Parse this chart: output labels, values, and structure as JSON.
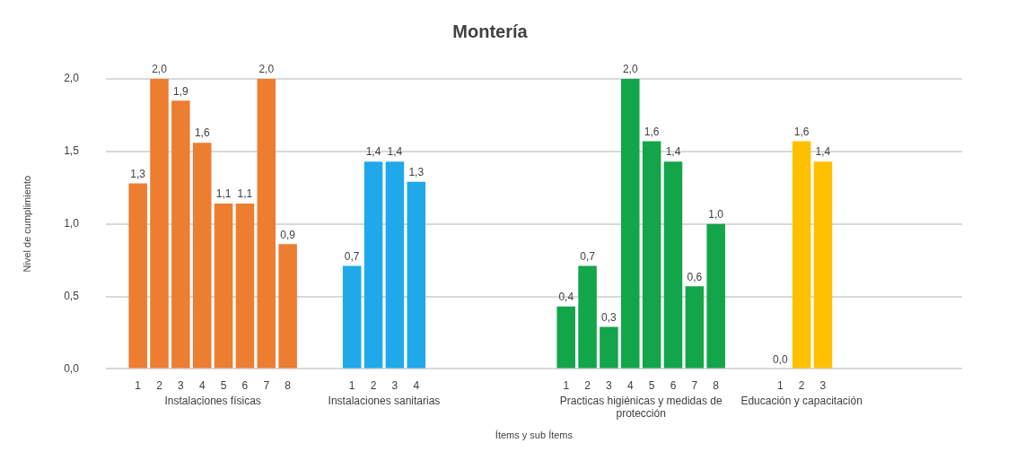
{
  "chart_data": {
    "type": "bar",
    "title": "Montería",
    "ylabel": "Nivel de cumplimiento",
    "xlabel": "Ítems y sub Ítems",
    "annotations": [
      "Instalaciones físicas",
      "Instalaciones sanitarias",
      "Practicas higiénicas y medidas de protección",
      "Educación y capacitación"
    ],
    "categories": [
      null,
      "1",
      "2",
      "3",
      "4",
      "5",
      "6",
      "7",
      "8",
      null,
      null,
      "1",
      "2",
      "3",
      "4",
      null,
      null,
      null,
      null,
      null,
      null,
      "1",
      "2",
      "3",
      "4",
      "5",
      "6",
      "7",
      "8",
      null,
      null,
      "1",
      "2",
      "3",
      null,
      null,
      null,
      null,
      null,
      null
    ],
    "values": [
      null,
      1.28,
      2.0,
      1.85,
      1.56,
      1.14,
      1.14,
      2.0,
      0.86,
      null,
      null,
      0.71,
      1.43,
      1.43,
      1.29,
      null,
      null,
      null,
      null,
      null,
      null,
      0.43,
      0.71,
      0.29,
      2.0,
      1.57,
      1.43,
      0.57,
      1.0,
      null,
      null,
      0,
      1.57,
      1.43,
      null,
      null,
      null,
      null,
      null,
      null
    ],
    "value_labels": [
      null,
      "1,3",
      "2,0",
      "1,9",
      "1,6",
      "1,1",
      "1,1",
      "2,0",
      "0,9",
      null,
      null,
      "0,7",
      "1,4",
      "1,4",
      "1,3",
      null,
      null,
      null,
      null,
      null,
      null,
      "0,4",
      "0,7",
      "0,3",
      "2,0",
      "1,6",
      "1,4",
      "0,6",
      "1,0",
      null,
      null,
      "0,0",
      "1,6",
      "1,4",
      null,
      null,
      null,
      null,
      null,
      null
    ],
    "colors": [
      null,
      "#ed7d31",
      "#ed7d31",
      "#ed7d31",
      "#ed7d31",
      "#ed7d31",
      "#ed7d31",
      "#ed7d31",
      "#ed7d31",
      null,
      null,
      "#1fa9ea",
      "#1fa9ea",
      "#1fa9ea",
      "#1fa9ea",
      null,
      null,
      null,
      null,
      null,
      null,
      "#12a54a",
      "#12a54a",
      "#12a54a",
      "#12a54a",
      "#12a54a",
      "#12a54a",
      "#12a54a",
      "#12a54a",
      null,
      null,
      "#ffc000",
      "#ffc000",
      "#ffc000",
      null,
      null,
      null,
      null,
      null,
      null
    ],
    "ylim": [
      0,
      2
    ],
    "yticks": [
      {
        "value": 0,
        "label": "0,0"
      },
      {
        "value": 0.5,
        "label": "0,5"
      },
      {
        "value": 1,
        "label": "1,0"
      },
      {
        "value": 1.5,
        "label": "1,5"
      },
      {
        "value": 2,
        "label": "2,0"
      }
    ],
    "grid": "y",
    "legend": false
  }
}
